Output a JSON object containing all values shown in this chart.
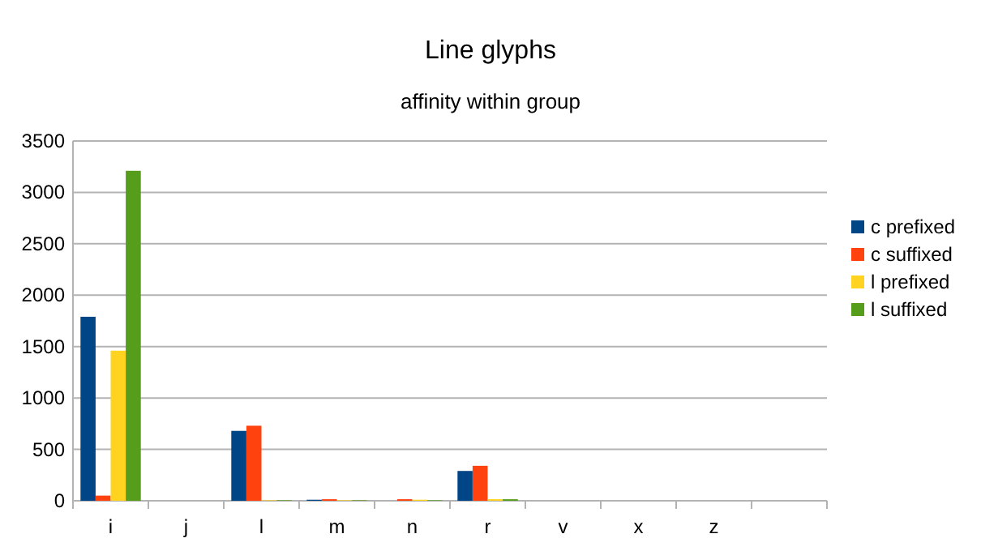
{
  "chart_data": {
    "type": "bar",
    "title": "Line glyphs",
    "subtitle": "affinity within group",
    "categories": [
      "i",
      "j",
      "l",
      "m",
      "n",
      "r",
      "v",
      "x",
      "z",
      null
    ],
    "series": [
      {
        "name": "c prefixed",
        "color": "#004586",
        "values": [
          1790,
          0,
          680,
          10,
          0,
          290,
          0,
          0,
          0,
          0
        ]
      },
      {
        "name": "c suffixed",
        "color": "#ff420e",
        "values": [
          50,
          0,
          730,
          15,
          15,
          340,
          0,
          0,
          0,
          0
        ]
      },
      {
        "name": "l prefixed",
        "color": "#ffd320",
        "values": [
          1460,
          0,
          5,
          5,
          10,
          15,
          0,
          0,
          0,
          0
        ]
      },
      {
        "name": "l suffixed",
        "color": "#579d1c",
        "values": [
          3210,
          0,
          5,
          5,
          5,
          15,
          0,
          0,
          0,
          0
        ]
      }
    ],
    "ylim": [
      0,
      3500
    ],
    "yticks": [
      0,
      500,
      1000,
      1500,
      2000,
      2500,
      3000,
      3500
    ],
    "grid": "y",
    "legend": "right"
  }
}
